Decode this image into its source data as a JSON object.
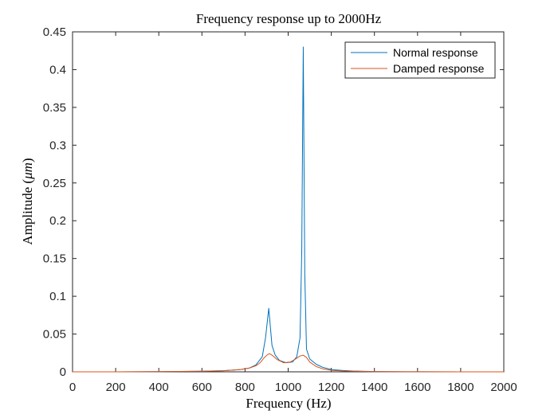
{
  "chart_data": {
    "type": "line",
    "title": "Frequency response up to 2000Hz",
    "xlabel": "Frequency (Hz)",
    "ylabel": "Amplitude (μm)",
    "ylabel_prefix": "Amplitude (",
    "ylabel_symbol": "μm",
    "ylabel_suffix": ")",
    "xlim": [
      0,
      2000
    ],
    "ylim": [
      0,
      0.45
    ],
    "xticks": [
      0,
      200,
      400,
      600,
      800,
      1000,
      1200,
      1400,
      1600,
      1800,
      2000
    ],
    "xtick_labels": [
      "0",
      "200",
      "400",
      "600",
      "800",
      "1000",
      "1200",
      "1400",
      "1600",
      "1800",
      "2000"
    ],
    "yticks": [
      0,
      0.05,
      0.1,
      0.15,
      0.2,
      0.25,
      0.3,
      0.35,
      0.4,
      0.45
    ],
    "ytick_labels": [
      "0",
      "0.05",
      "0.1",
      "0.15",
      "0.2",
      "0.25",
      "0.3",
      "0.35",
      "0.4",
      "0.45"
    ],
    "grid": false,
    "legend_position": "top-right",
    "series": [
      {
        "name": "Normal response",
        "color": "#0072BD",
        "x": [
          0,
          200,
          400,
          600,
          700,
          780,
          820,
          850,
          880,
          895,
          910,
          925,
          940,
          960,
          990,
          1020,
          1040,
          1055,
          1063,
          1070,
          1077,
          1085,
          1100,
          1130,
          1160,
          1200,
          1250,
          1300,
          1400,
          1600,
          1800,
          2000
        ],
        "y": [
          0,
          0,
          0.0002,
          0.0008,
          0.0015,
          0.003,
          0.005,
          0.009,
          0.02,
          0.045,
          0.084,
          0.035,
          0.022,
          0.015,
          0.012,
          0.013,
          0.02,
          0.045,
          0.16,
          0.43,
          0.13,
          0.03,
          0.017,
          0.01,
          0.006,
          0.003,
          0.0018,
          0.001,
          0.0004,
          0.0001,
          0,
          0
        ]
      },
      {
        "name": "Damped response",
        "color": "#D95319",
        "x": [
          0,
          200,
          400,
          600,
          700,
          780,
          820,
          850,
          870,
          890,
          905,
          915,
          930,
          950,
          980,
          1010,
          1035,
          1055,
          1070,
          1085,
          1100,
          1130,
          1160,
          1200,
          1250,
          1300,
          1400,
          1600,
          1800,
          2000
        ],
        "y": [
          0,
          0,
          0.0002,
          0.0008,
          0.0015,
          0.003,
          0.005,
          0.008,
          0.012,
          0.019,
          0.023,
          0.024,
          0.021,
          0.016,
          0.012,
          0.013,
          0.017,
          0.021,
          0.022,
          0.019,
          0.013,
          0.007,
          0.004,
          0.002,
          0.0012,
          0.0008,
          0.0003,
          0.0001,
          0,
          0
        ]
      }
    ]
  }
}
